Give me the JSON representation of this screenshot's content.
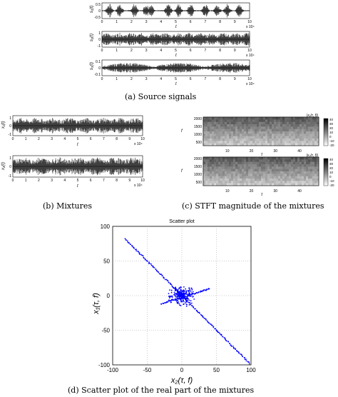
{
  "captions": {
    "a": "(a)  Source signals",
    "b": "(b)  Mixtures",
    "c": "(c)  STFT magnitude of the mixtures",
    "d": "(d)  Scatter plot of the real part of the mixtures"
  },
  "panel_a": {
    "ylabels": [
      "s₁(t)",
      "s₂(t)",
      "s₃(t)"
    ],
    "xlabel": "t",
    "exponent": "x 10⁴",
    "xticks": [
      "0",
      "1",
      "2",
      "3",
      "4",
      "5",
      "6",
      "7",
      "8",
      "9",
      "10"
    ],
    "yticks_top": [
      "0.5",
      "0",
      "-0.5"
    ],
    "yticks_mid": [
      "1",
      "0",
      "-1"
    ],
    "yticks_bot": [
      "0.1",
      "0",
      "-0.1"
    ]
  },
  "panel_b": {
    "ylabels": [
      "x₁(t)",
      "x₂(t)"
    ],
    "xlabel": "t",
    "exponent": "x 10⁴",
    "xticks": [
      "0",
      "1",
      "2",
      "3",
      "4",
      "5",
      "6",
      "7",
      "8",
      "9",
      "10"
    ],
    "yticks": [
      "1",
      "0",
      "-1"
    ]
  },
  "panel_c": {
    "titles": [
      "|x₁(τ, f)|",
      "|x₂(τ, f)|"
    ],
    "ylabel": "f",
    "xlabel": "τ",
    "yticks": [
      "2000",
      "1500",
      "1000",
      "500"
    ],
    "xticks": [
      "10",
      "20",
      "30",
      "40"
    ],
    "colorbar": [
      "40",
      "30",
      "20",
      "10",
      "0",
      "-10",
      "-20"
    ]
  },
  "chart_data": {
    "type": "scatter",
    "title": "Scatter plot",
    "xlabel": "x₂(τ, f)",
    "ylabel": "x₁(τ, f)",
    "xlim": [
      -100,
      100
    ],
    "ylim": [
      -100,
      100
    ],
    "xticks": [
      "-100",
      "-50",
      "0",
      "50",
      "100"
    ],
    "yticks": [
      "100",
      "50",
      "0",
      "-50",
      "-100"
    ],
    "grid": true,
    "color": "#0000ff",
    "lines": [
      {
        "x0": -82,
        "y0": 82,
        "x1": 98,
        "y1": -98
      },
      {
        "x0": -30,
        "y0": -12,
        "x1": 40,
        "y1": 10
      }
    ],
    "cluster": {
      "cx": 0,
      "cy": 0,
      "radius": 20
    }
  }
}
